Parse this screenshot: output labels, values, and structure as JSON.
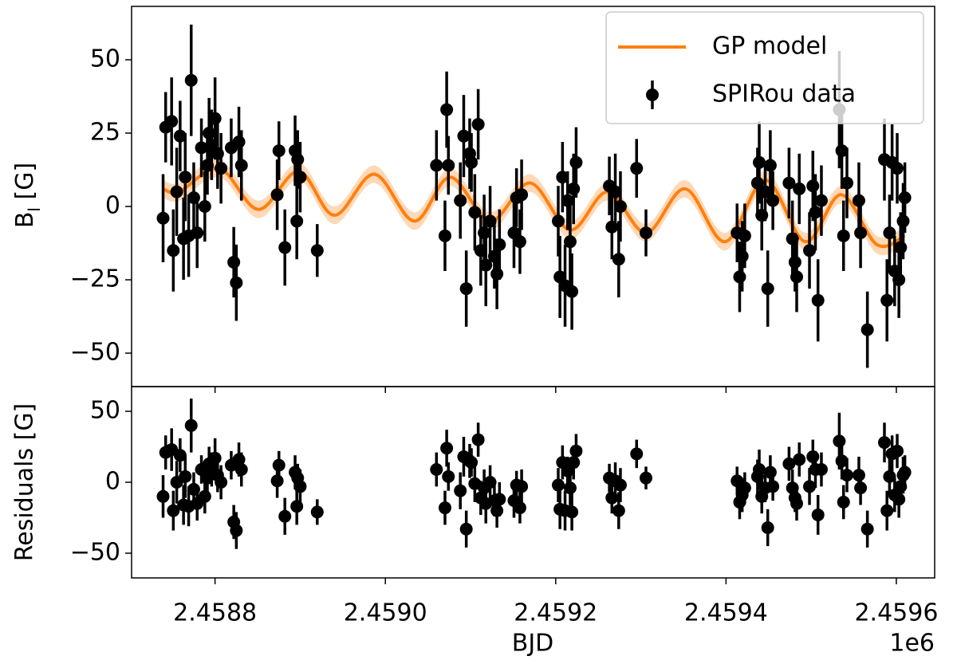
{
  "chart_data": [
    {
      "type": "scatter",
      "ylabel": [
        "B",
        "l",
        " [G]"
      ],
      "ylim": [
        -61.4,
        68.2
      ],
      "yticks": [
        {
          "value": -50,
          "label": "−50"
        },
        {
          "value": -25,
          "label": "−25"
        },
        0,
        25,
        50
      ],
      "legend": "upper right",
      "series": [
        {
          "name": "GP model",
          "color": "#ff7f0e",
          "kind": "line",
          "x": [
            2458739,
            2458758,
            2458805,
            2458851,
            2458898,
            2458940,
            2458987,
            2459034,
            2459076,
            2459123,
            2459170,
            2459217,
            2459261,
            2459306,
            2459352,
            2459399,
            2459446,
            2459493,
            2459535,
            2459577,
            2459610
          ],
          "values": [
            6,
            5,
            13,
            -1,
            12,
            -3,
            11,
            -5,
            10,
            -5,
            8,
            -8,
            5,
            -9,
            6,
            -12,
            9,
            -12,
            4,
            -13,
            -10
          ],
          "lower": [
            3,
            2,
            10,
            -4,
            9,
            -6,
            8,
            -8,
            7,
            -8,
            5,
            -11,
            2,
            -12,
            3,
            -15,
            6,
            -15,
            1,
            -16,
            -13
          ],
          "upper": [
            9,
            8,
            16,
            2,
            15,
            0,
            14,
            -2,
            13,
            -2,
            11,
            -5,
            8,
            -6,
            9,
            -9,
            12,
            -9,
            7,
            -10,
            -7
          ]
        },
        {
          "name": "SPIRou data",
          "color": "#000000",
          "kind": "errorbar",
          "x": [
            2458739,
            2458742,
            2458749,
            2458751,
            2458755,
            2458759,
            2458763,
            2458765,
            2458769,
            2458772,
            2458775,
            2458779,
            2458784,
            2458788,
            2458791,
            2458793,
            2458796,
            2458800,
            2458803,
            2458807,
            2458819,
            2458822,
            2458825,
            2458828,
            2458831,
            2458873,
            2458875,
            2458882,
            2458894,
            2458896,
            2458897,
            2458900,
            2458920,
            2459060,
            2459070,
            2459072,
            2459074,
            2459088,
            2459092,
            2459095,
            2459099,
            2459101,
            2459105,
            2459109,
            2459112,
            2459116,
            2459118,
            2459123,
            2459128,
            2459131,
            2459134,
            2459151,
            2459154,
            2459158,
            2459160,
            2459203,
            2459205,
            2459208,
            2459211,
            2459214,
            2459217,
            2459219,
            2459221,
            2459224,
            2459263,
            2459266,
            2459270,
            2459274,
            2459276,
            2459295,
            2459306,
            2459413,
            2459416,
            2459419,
            2459422,
            2459437,
            2459439,
            2459442,
            2459446,
            2459449,
            2459452,
            2459455,
            2459474,
            2459478,
            2459481,
            2459483,
            2459486,
            2459498,
            2459502,
            2459505,
            2459508,
            2459512,
            2459533,
            2459536,
            2459538,
            2459542,
            2459556,
            2459558,
            2459566,
            2459586,
            2459589,
            2459592,
            2459595,
            2459598,
            2459601,
            2459603,
            2459605,
            2459608,
            2459610
          ],
          "values": [
            -4,
            27,
            29,
            -15,
            5,
            24,
            -11,
            10,
            -10,
            43,
            3,
            -9,
            20,
            0,
            14,
            25,
            21,
            30,
            18,
            13,
            20,
            -19,
            -26,
            22,
            14,
            4,
            19,
            -14,
            19,
            -5,
            16,
            10,
            -15,
            14,
            -10,
            33,
            14,
            2,
            24,
            -28,
            18,
            15,
            -2,
            28,
            -15,
            -9,
            -20,
            -5,
            -17,
            -23,
            -13,
            -9,
            3,
            -12,
            4,
            -5,
            -24,
            10,
            -27,
            2,
            -12,
            -29,
            6,
            15,
            7,
            -7,
            5,
            -18,
            0,
            13,
            -9,
            -9,
            -24,
            -17,
            -10,
            8,
            15,
            -3,
            5,
            -28,
            14,
            2,
            8,
            -11,
            -19,
            -24,
            6,
            -15,
            7,
            -2,
            -32,
            2,
            33,
            19,
            -10,
            8,
            2,
            -9,
            -42,
            16,
            -32,
            -9,
            15,
            -22,
            13,
            -25,
            -14,
            -5,
            3
          ],
          "errors": [
            15,
            12,
            15,
            14,
            15,
            12,
            14,
            15,
            14,
            19,
            12,
            12,
            10,
            12,
            10,
            12,
            12,
            14,
            12,
            12,
            10,
            12,
            13,
            12,
            12,
            12,
            10,
            13,
            12,
            13,
            10,
            12,
            9,
            12,
            12,
            13,
            10,
            13,
            14,
            13,
            12,
            10,
            13,
            12,
            12,
            13,
            14,
            12,
            11,
            12,
            12,
            12,
            10,
            11,
            12,
            12,
            14,
            12,
            14,
            10,
            14,
            13,
            12,
            12,
            10,
            11,
            13,
            13,
            12,
            10,
            8,
            10,
            12,
            12,
            11,
            12,
            14,
            12,
            10,
            13,
            12,
            10,
            12,
            13,
            10,
            12,
            12,
            13,
            12,
            13,
            14,
            12,
            20,
            13,
            12,
            12,
            13,
            12,
            13,
            14,
            14,
            13,
            13,
            12,
            12,
            13,
            12,
            13,
            12
          ]
        }
      ]
    },
    {
      "type": "scatter",
      "ylabel": "Residuals [G]",
      "xlabel": "BJD",
      "x_offset_label": "1e6",
      "xlim": [
        2458702,
        2459645
      ],
      "xticks": [
        {
          "value": 2458800,
          "label": "2.4588"
        },
        {
          "value": 2459000,
          "label": "2.4590"
        },
        {
          "value": 2459200,
          "label": "2.4592"
        },
        {
          "value": 2459400,
          "label": "2.4594"
        },
        {
          "value": 2459600,
          "label": "2.4596"
        }
      ],
      "ylim": [
        -67.4,
        67.4
      ],
      "yticks": [
        {
          "value": -50,
          "label": "−50"
        },
        0,
        50
      ],
      "series": [
        {
          "color": "#000000",
          "kind": "errorbar",
          "values": [
            -10,
            21,
            23,
            -20,
            0,
            19,
            -16,
            4,
            -17,
            40,
            -5,
            -15,
            9,
            -10,
            3,
            13,
            9,
            17,
            5,
            0,
            12,
            -28,
            -34,
            16,
            9,
            1,
            12,
            -24,
            7,
            -17,
            3,
            -3,
            -21,
            9,
            -18,
            24,
            4,
            -6,
            18,
            -33,
            15,
            14,
            -1,
            30,
            -11,
            -4,
            -15,
            0,
            -13,
            -20,
            -12,
            -13,
            -2,
            -18,
            -3,
            -2,
            -19,
            14,
            -20,
            8,
            -4,
            -21,
            14,
            22,
            3,
            -11,
            1,
            -20,
            -2,
            20,
            3,
            1,
            -14,
            -9,
            -4,
            4,
            9,
            -10,
            -4,
            -32,
            7,
            -3,
            13,
            -4,
            -11,
            -15,
            16,
            -3,
            18,
            9,
            -23,
            9,
            29,
            15,
            -14,
            5,
            5,
            -4,
            -33,
            28,
            -20,
            4,
            20,
            -9,
            22,
            -12,
            -3,
            5,
            7
          ],
          "errors": [
            15,
            12,
            15,
            14,
            15,
            12,
            14,
            15,
            14,
            19,
            12,
            12,
            10,
            12,
            10,
            12,
            12,
            14,
            12,
            12,
            10,
            12,
            13,
            12,
            12,
            12,
            10,
            13,
            12,
            13,
            10,
            12,
            9,
            12,
            12,
            13,
            10,
            13,
            14,
            13,
            12,
            10,
            13,
            12,
            12,
            13,
            14,
            12,
            11,
            12,
            12,
            12,
            10,
            11,
            12,
            12,
            14,
            12,
            14,
            10,
            14,
            13,
            12,
            12,
            10,
            11,
            13,
            13,
            12,
            10,
            8,
            10,
            12,
            12,
            11,
            12,
            14,
            12,
            10,
            13,
            12,
            10,
            12,
            13,
            10,
            12,
            12,
            13,
            12,
            13,
            14,
            12,
            20,
            13,
            12,
            12,
            13,
            12,
            13,
            14,
            14,
            13,
            13,
            12,
            12,
            13,
            12,
            13,
            12
          ]
        }
      ]
    }
  ]
}
